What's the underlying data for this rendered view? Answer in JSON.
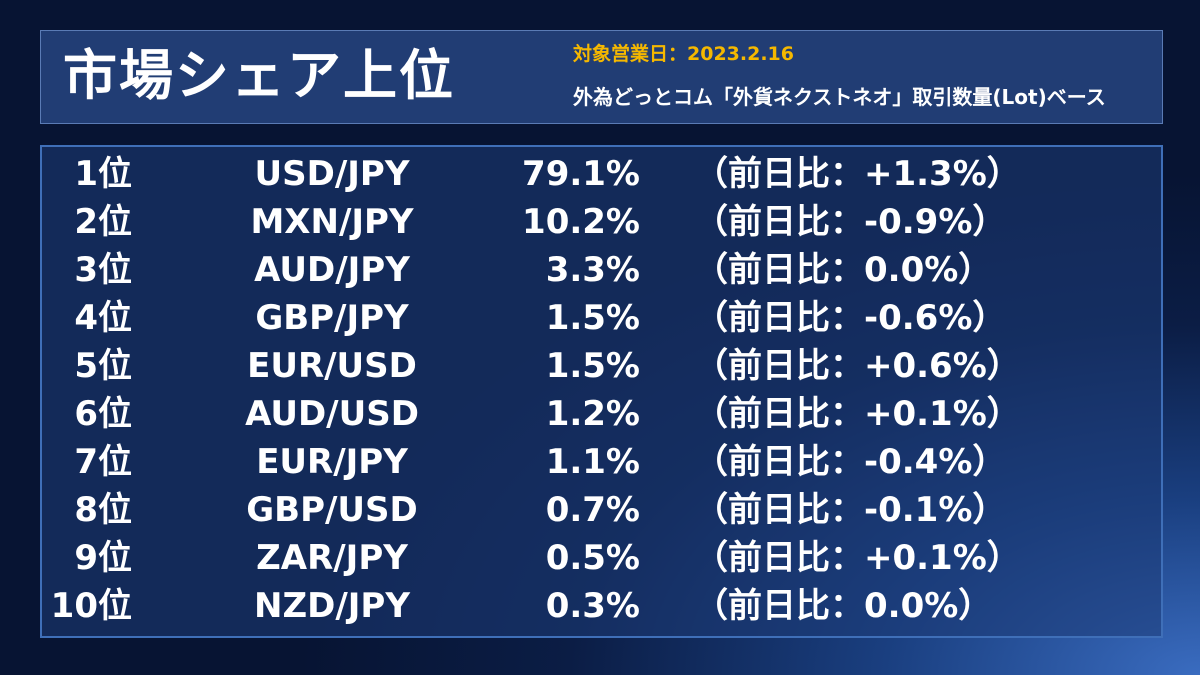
{
  "header": {
    "title": "市場シェア上位",
    "date": "対象営業日：2023.2.16",
    "basis": "外為どっとコム「外貨ネクストネオ」取引数量(Lot)ベース"
  },
  "rows": [
    {
      "rank": "1位",
      "pair": "USD/JPY",
      "share": "79.1%",
      "change": "（前日比：+1.3%）"
    },
    {
      "rank": "2位",
      "pair": "MXN/JPY",
      "share": "10.2%",
      "change": "（前日比：-0.9%）"
    },
    {
      "rank": "3位",
      "pair": "AUD/JPY",
      "share": "3.3%",
      "change": "（前日比：0.0%）"
    },
    {
      "rank": "4位",
      "pair": "GBP/JPY",
      "share": "1.5%",
      "change": "（前日比：-0.6%）"
    },
    {
      "rank": "5位",
      "pair": "EUR/USD",
      "share": "1.5%",
      "change": "（前日比：+0.6%）"
    },
    {
      "rank": "6位",
      "pair": "AUD/USD",
      "share": "1.2%",
      "change": "（前日比：+0.1%）"
    },
    {
      "rank": "7位",
      "pair": "EUR/JPY",
      "share": "1.1%",
      "change": "（前日比：-0.4%）"
    },
    {
      "rank": "8位",
      "pair": "GBP/USD",
      "share": "0.7%",
      "change": "（前日比：-0.1%）"
    },
    {
      "rank": "9位",
      "pair": "ZAR/JPY",
      "share": "0.5%",
      "change": "（前日比：+0.1%）"
    },
    {
      "rank": "10位",
      "pair": "NZD/JPY",
      "share": "0.3%",
      "change": "（前日比：0.0%）"
    }
  ],
  "colors": {
    "date": "#f5b800",
    "header_bg": "#213d74",
    "border": "#3f6fb8"
  }
}
